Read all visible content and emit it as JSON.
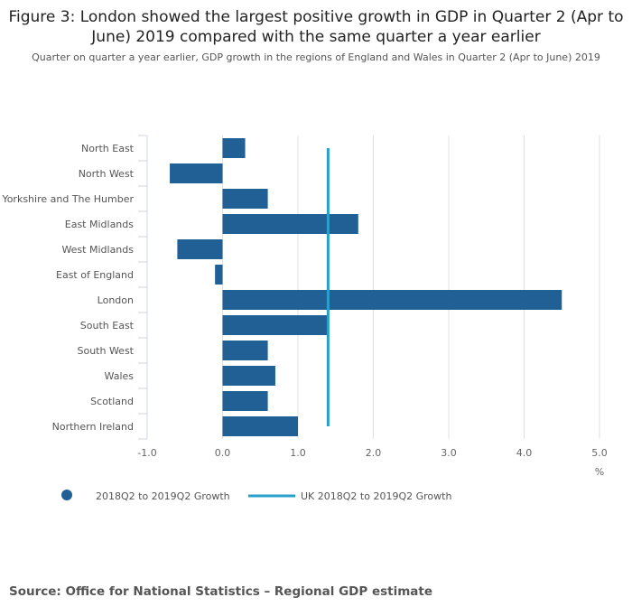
{
  "chart_data": {
    "type": "bar",
    "orientation": "horizontal",
    "title": "Figure 3: London showed the largest positive growth in GDP in Quarter 2 (Apr to June) 2019 compared with the same quarter a year earlier",
    "subtitle": "Quarter on quarter a year earlier, GDP growth in the regions of England and Wales in Quarter 2 (Apr to June) 2019",
    "categories": [
      "North East",
      "North West",
      "Yorkshire and The Humber",
      "East Midlands",
      "West Midlands",
      "East of England",
      "London",
      "South East",
      "South West",
      "Wales",
      "Scotland",
      "Northern Ireland"
    ],
    "series": [
      {
        "name": "2018Q2 to 2019Q2 Growth",
        "type": "bar",
        "color": "#206095",
        "values": [
          0.3,
          -0.7,
          0.6,
          1.8,
          -0.6,
          -0.1,
          4.5,
          1.4,
          0.6,
          0.7,
          0.6,
          1.0
        ]
      },
      {
        "name": "UK 2018Q2 to 2019Q2 Growth",
        "type": "reference-line",
        "color": "#27a0cc",
        "value": 1.4
      }
    ],
    "xlim": [
      -1.0,
      5.0
    ],
    "xticks": [
      "-1.0",
      "0.0",
      "1.0",
      "2.0",
      "3.0",
      "4.0",
      "5.0"
    ],
    "xlabel": "%",
    "grid": true,
    "legend": "bottom-left"
  },
  "source": "Source: Office for National Statistics – Regional GDP estimate"
}
